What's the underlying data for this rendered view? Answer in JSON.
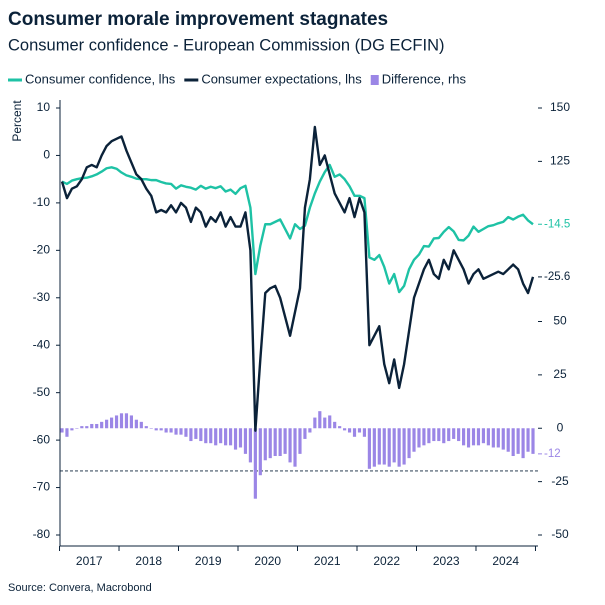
{
  "chart_data": {
    "type": "line",
    "title": "Consumer morale improvement stagnates",
    "subtitle": "Consumer confidence - European Commission (DG ECFIN)",
    "y_label": "Percent",
    "source": "Source: Convera, Macrobond",
    "categories": [
      null,
      null,
      null,
      null,
      null,
      null,
      "2017",
      null,
      null,
      null,
      null,
      null,
      null,
      null,
      null,
      null,
      null,
      null,
      "2018",
      null,
      null,
      null,
      null,
      null,
      null,
      null,
      null,
      null,
      null,
      null,
      "2019",
      null,
      null,
      null,
      null,
      null,
      null,
      null,
      null,
      null,
      null,
      null,
      "2020",
      null,
      null,
      null,
      null,
      null,
      null,
      null,
      null,
      null,
      null,
      null,
      "2021",
      null,
      null,
      null,
      null,
      null,
      null,
      null,
      null,
      null,
      null,
      null,
      "2022",
      null,
      null,
      null,
      null,
      null,
      null,
      null,
      null,
      null,
      null,
      null,
      "2023",
      null,
      null,
      null,
      null,
      null,
      null,
      null,
      null,
      null,
      null,
      null,
      "2024",
      null,
      null,
      null,
      null,
      null
    ],
    "series": [
      {
        "name": "Consumer confidence, lhs",
        "type": "line",
        "color": "#1ec2a5",
        "label_last": true,
        "values": [
          -5.5,
          -6,
          -5.3,
          -5,
          -4.8,
          -4.7,
          -4.4,
          -4,
          -3.4,
          -2.7,
          -2.5,
          -2.8,
          -3.6,
          -4.2,
          -4.5,
          -4.9,
          -5,
          -5,
          -5.2,
          -5.2,
          -5.6,
          -5.9,
          -6,
          -7,
          -6.3,
          -6.6,
          -6.8,
          -7.2,
          -6.4,
          -7,
          -6.6,
          -6.9,
          -6.5,
          -7.6,
          -7.2,
          -8.1,
          -6.9,
          -6.4,
          -11,
          -25,
          -19,
          -14.5,
          -14.5,
          -14,
          -13.5,
          -15.5,
          -17.5,
          -14.5,
          -15.5,
          -14.8,
          -11,
          -8,
          -5.5,
          -3.5,
          -2,
          -4.5,
          -4,
          -5,
          -6.5,
          -8.5,
          -8.5,
          -9,
          -21.5,
          -22,
          -21,
          -23.5,
          -27,
          -25,
          -28.8,
          -27.5,
          -24,
          -22,
          -20.9,
          -19.1,
          -19.2,
          -17.5,
          -17.4,
          -16.1,
          -15.1,
          -16,
          -17.8,
          -17.9,
          -16.9,
          -15,
          -16.1,
          -15.5,
          -14.9,
          -14.7,
          -14.3,
          -14,
          -13,
          -13.5,
          -12.9,
          -12.5,
          -13.7,
          -14.5
        ]
      },
      {
        "name": "Consumer expectations, lhs",
        "type": "line",
        "color": "#0b2239",
        "label_last": true,
        "values": [
          -5.5,
          -9,
          -7,
          -6.5,
          -5,
          -2.5,
          -2,
          -2.5,
          0,
          2,
          3,
          3.5,
          4,
          1,
          -1.5,
          -4,
          -5,
          -7,
          -8.5,
          -12,
          -11.5,
          -12,
          -10.5,
          -12,
          -10,
          -11,
          -14,
          -11,
          -12,
          -15,
          -13,
          -14,
          -12,
          -15,
          -13,
          -15,
          -15,
          -12,
          -20,
          -58,
          -43,
          -29,
          -28,
          -27.5,
          -30,
          -34,
          -38,
          -33,
          -28,
          -11,
          -5,
          6,
          -2,
          0,
          -4,
          -8,
          -10,
          -12,
          -9,
          -13,
          -9,
          -12,
          -40,
          -38,
          -36,
          -44,
          -48,
          -43,
          -49,
          -44,
          -37,
          -30,
          -27,
          -24,
          -22,
          -25,
          -26,
          -22,
          -24,
          -20,
          -22,
          -24,
          -27,
          -25,
          -24,
          -26,
          -25.5,
          -25,
          -24.5,
          -25,
          -24,
          -23,
          -24,
          -27,
          -29,
          -25.6
        ]
      },
      {
        "name": "Difference, rhs",
        "type": "bar",
        "axis": "y2",
        "color": "#9b86e6",
        "label_last": true,
        "values": [
          -2,
          -4,
          -1,
          0,
          1,
          1,
          2,
          2,
          3,
          4,
          5,
          6,
          7,
          7,
          6,
          4,
          3,
          1,
          0,
          -1,
          -1,
          -2,
          -2,
          -3,
          -3,
          -4,
          -6,
          -5,
          -6,
          -7,
          -7,
          -8,
          -7,
          -8,
          -8,
          -10,
          -9,
          -12,
          -16,
          -33,
          -22,
          -15,
          -14,
          -13,
          -13,
          -12,
          -16,
          -18,
          -12,
          -5,
          -2,
          5,
          8,
          5,
          6,
          3,
          1,
          -1,
          -2,
          -4,
          -2,
          -4,
          -19,
          -18,
          -17,
          -17,
          -18,
          -16,
          -18,
          -17,
          -14,
          -11,
          -9,
          -8,
          -7,
          -6,
          -6,
          -7,
          -6,
          -5,
          -6,
          -8,
          -9,
          -8,
          -8,
          -7,
          -8,
          -9,
          -9,
          -10,
          -11,
          -13,
          -12,
          -14,
          -11,
          -12
        ]
      }
    ],
    "ylim": [
      -80,
      10
    ],
    "yticks": [
      -80,
      -70,
      -60,
      -50,
      -40,
      -30,
      -20,
      -10,
      0,
      10
    ],
    "y2lim": [
      -50,
      150
    ],
    "y2ticks": [
      -50,
      -25,
      0,
      25,
      50,
      125,
      150
    ],
    "hlines": [
      {
        "value": -20,
        "axis": "y2",
        "style": "dashed"
      }
    ],
    "legend": "top",
    "grid": false
  }
}
